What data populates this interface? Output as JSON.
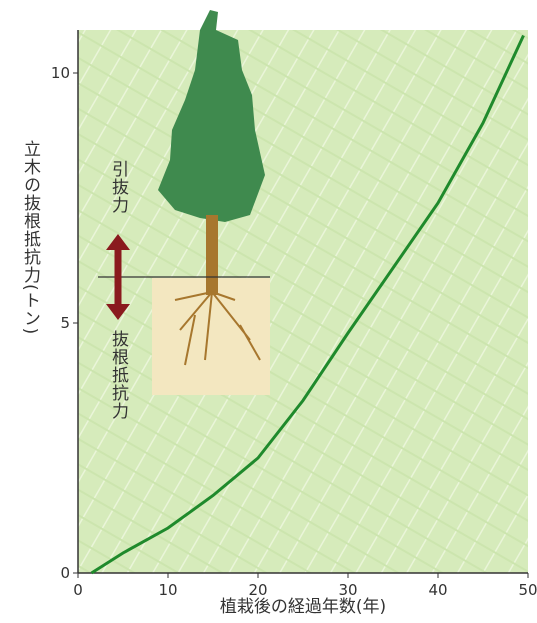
{
  "chart_data": {
    "type": "line",
    "y_label": "立木の抜根抵抗力(トン)",
    "x_label": "植栽後の経過年数(年)",
    "annotations": [
      "引抜力",
      "抜根抵抗力"
    ],
    "x": [
      1.5,
      5,
      10,
      15,
      20,
      25,
      30,
      35,
      40,
      45,
      49.5
    ],
    "series": [
      {
        "color": "#1f8a2c",
        "values": [
          0,
          0.4,
          0.9,
          1.55,
          2.3,
          3.45,
          4.8,
          6.1,
          7.4,
          9.0,
          10.75
        ]
      }
    ],
    "xlim": [
      0,
      50
    ],
    "xticks": [
      0,
      10,
      20,
      30,
      40,
      50
    ],
    "ylim": [
      0,
      10.86
    ],
    "yticks": [
      0,
      5,
      10
    ]
  }
}
